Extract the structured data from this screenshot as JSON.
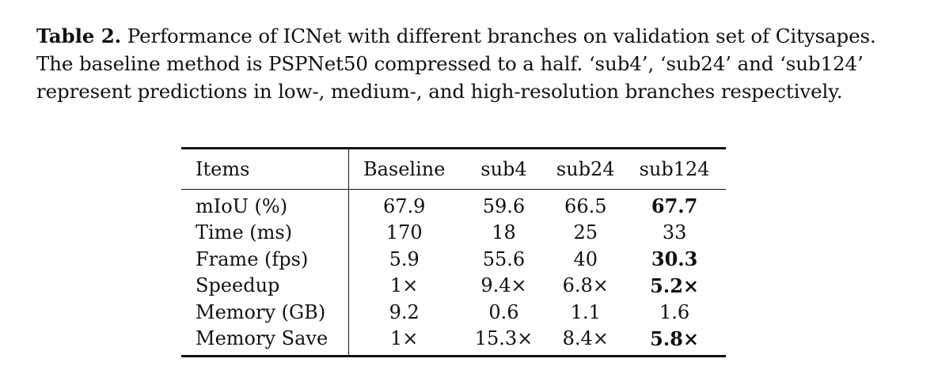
{
  "caption": {
    "label": "Table 2.",
    "text": " Performance of ICNet with different branches on validation set of Citysapes. The baseline method is PSPNet50 compressed to a half. ‘sub4’, ‘sub24’ and ‘sub124’ represent predictions in low-, medium-, and high-resolution branches respectively."
  },
  "table": {
    "headers": [
      "Items",
      "Baseline",
      "sub4",
      "sub24",
      "sub124"
    ],
    "rows": [
      {
        "item": "mIoU (%)",
        "baseline": "67.9",
        "sub4": "59.6",
        "sub24": "66.5",
        "sub124": "67.7",
        "sub124_bold": true
      },
      {
        "item": "Time (ms)",
        "baseline": "170",
        "sub4": "18",
        "sub24": "25",
        "sub124": "33",
        "sub124_bold": false
      },
      {
        "item": "Frame (fps)",
        "baseline": "5.9",
        "sub4": "55.6",
        "sub24": "40",
        "sub124": "30.3",
        "sub124_bold": true
      },
      {
        "item": "Speedup",
        "baseline": "1×",
        "sub4": "9.4×",
        "sub24": "6.8×",
        "sub124": "5.2×",
        "sub124_bold": true
      },
      {
        "item": "Memory (GB)",
        "baseline": "9.2",
        "sub4": "0.6",
        "sub24": "1.1",
        "sub124": "1.6",
        "sub124_bold": false
      },
      {
        "item": "Memory Save",
        "baseline": "1×",
        "sub4": "15.3×",
        "sub24": "8.4×",
        "sub124": "5.8×",
        "sub124_bold": true
      }
    ]
  }
}
